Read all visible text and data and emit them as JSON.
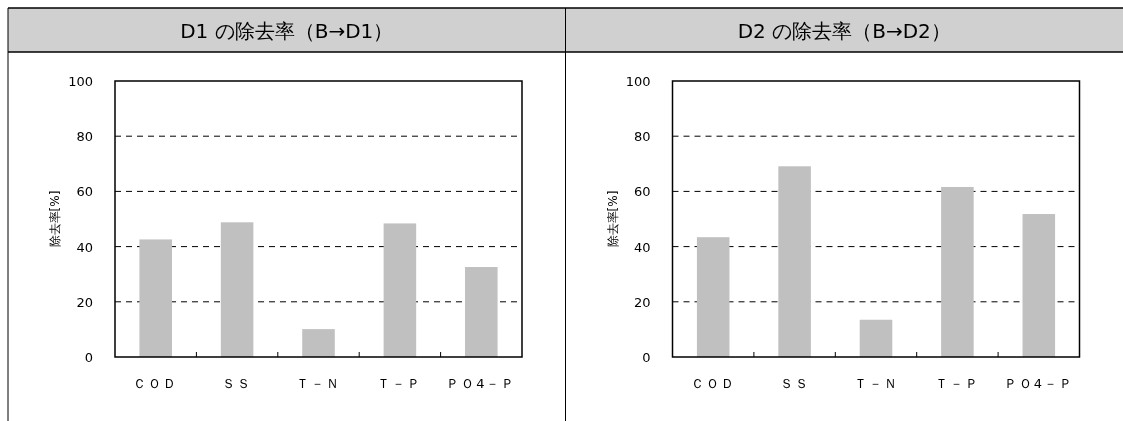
{
  "chart_data": [
    {
      "type": "bar",
      "title": "D1 の除去率（B→D1）",
      "ylabel": "除去率[%]",
      "categories": [
        "ＣＯＤ",
        "ＳＳ",
        "Ｔ－Ｎ",
        "Ｔ－Ｐ",
        "ＰＯ4－Ｐ"
      ],
      "values": [
        42.6,
        48.8,
        10.1,
        48.4,
        32.6
      ],
      "color": "#c0c0c0",
      "ylim": [
        0,
        100
      ],
      "yticks": [
        0,
        20,
        40,
        60,
        80,
        100
      ],
      "grid": "y"
    },
    {
      "type": "bar",
      "title": "D2 の除去率（B→D2）",
      "ylabel": "除去率[%]",
      "categories": [
        "ＣＯＤ",
        "ＳＳ",
        "Ｔ－Ｎ",
        "Ｔ－Ｐ",
        "ＰＯ4－Ｐ"
      ],
      "values": [
        43.4,
        69.1,
        13.5,
        61.6,
        51.8
      ],
      "color": "#c0c0c0",
      "ylim": [
        0,
        100
      ],
      "yticks": [
        0,
        20,
        40,
        60,
        80,
        100
      ],
      "grid": "y"
    }
  ]
}
